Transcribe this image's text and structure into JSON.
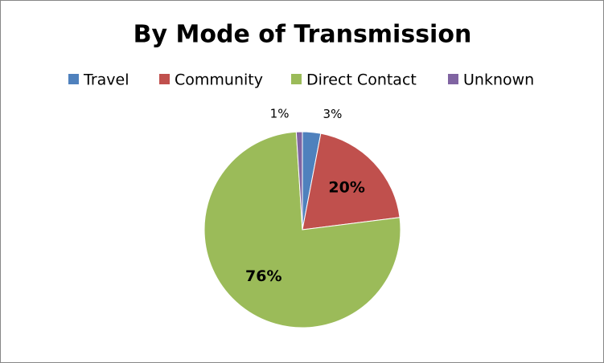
{
  "chart_data": {
    "type": "pie",
    "title": "By Mode of Transmission",
    "categories": [
      "Travel",
      "Community",
      "Direct Contact",
      "Unknown"
    ],
    "values": [
      3,
      20,
      76,
      1
    ],
    "value_labels": [
      "3%",
      "20%",
      "76%",
      "1%"
    ],
    "colors": [
      "#4f81bd",
      "#c0504d",
      "#9bbb59",
      "#8064a2"
    ],
    "legend": "top"
  }
}
